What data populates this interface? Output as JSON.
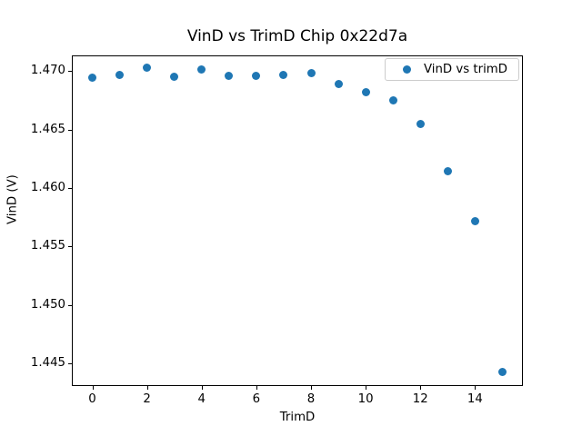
{
  "accent_color": "#1f77b4",
  "chart_data": {
    "type": "scatter",
    "title": "VinD vs TrimD Chip 0x22d7a",
    "xlabel": "TrimD",
    "ylabel": "VinD (V)",
    "grid": false,
    "legend_position": "upper right",
    "series": [
      {
        "name": "VinD vs trimD",
        "marker": "circle",
        "color": "#1f77b4",
        "x": [
          0,
          1,
          2,
          3,
          4,
          5,
          6,
          7,
          8,
          9,
          10,
          11,
          12,
          13,
          14,
          15
        ],
        "y": [
          1.4694,
          1.4697,
          1.4703,
          1.4695,
          1.4701,
          1.4696,
          1.4696,
          1.4697,
          1.4698,
          1.4689,
          1.4682,
          1.4675,
          1.4655,
          1.4614,
          1.4572,
          1.4443
        ]
      }
    ],
    "xlim": [
      -0.75,
      15.75
    ],
    "ylim": [
      1.44306,
      1.47134
    ],
    "xticks": [
      0,
      2,
      4,
      6,
      8,
      10,
      12,
      14
    ],
    "xtick_labels": [
      "0",
      "2",
      "4",
      "6",
      "8",
      "10",
      "12",
      "14"
    ],
    "yticks": [
      1.47,
      1.465,
      1.46,
      1.455,
      1.45,
      1.445
    ],
    "ytick_labels": [
      "1.470",
      "1.465",
      "1.460",
      "1.455",
      "1.450",
      "1.445"
    ]
  }
}
